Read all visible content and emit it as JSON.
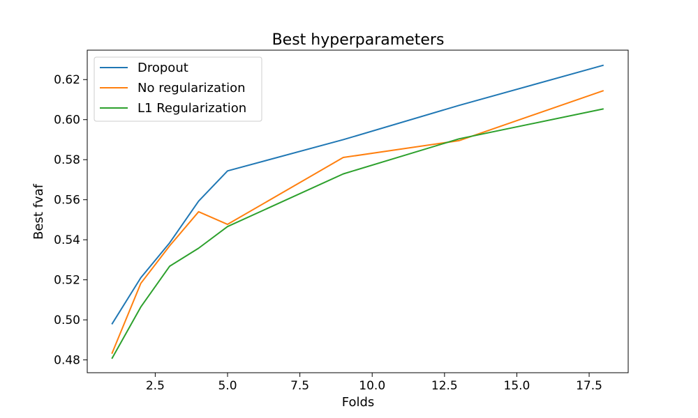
{
  "chart_data": {
    "type": "line",
    "title": "Best hyperparameters",
    "xlabel": "Folds",
    "ylabel": "Best fvaf",
    "xlim": [
      0.15,
      18.85
    ],
    "ylim": [
      0.4736,
      0.6347
    ],
    "xticks": [
      2.5,
      5.0,
      7.5,
      10.0,
      12.5,
      15.0,
      17.5
    ],
    "xtick_labels": [
      "2.5",
      "5.0",
      "7.5",
      "10.0",
      "12.5",
      "15.0",
      "17.5"
    ],
    "yticks": [
      0.48,
      0.5,
      0.52,
      0.54,
      0.56,
      0.58,
      0.6,
      0.62
    ],
    "ytick_labels": [
      "0.48",
      "0.50",
      "0.52",
      "0.54",
      "0.56",
      "0.58",
      "0.60",
      "0.62"
    ],
    "grid": false,
    "legend_position": "upper-left",
    "x": [
      1,
      2,
      3,
      4,
      5,
      9,
      13,
      18
    ],
    "series": [
      {
        "name": "Dropout",
        "color": "#1f77b4",
        "values": [
          0.4978,
          0.521,
          0.5385,
          0.5593,
          0.5744,
          0.59,
          0.6071,
          0.6272
        ]
      },
      {
        "name": "No regularization",
        "color": "#ff7f0e",
        "values": [
          0.4831,
          0.5182,
          0.537,
          0.554,
          0.5477,
          0.5811,
          0.5895,
          0.6145
        ]
      },
      {
        "name": "L1 Regularization",
        "color": "#2ca02c",
        "values": [
          0.4806,
          0.5064,
          0.5268,
          0.5358,
          0.5466,
          0.5729,
          0.5904,
          0.6054
        ]
      }
    ]
  }
}
